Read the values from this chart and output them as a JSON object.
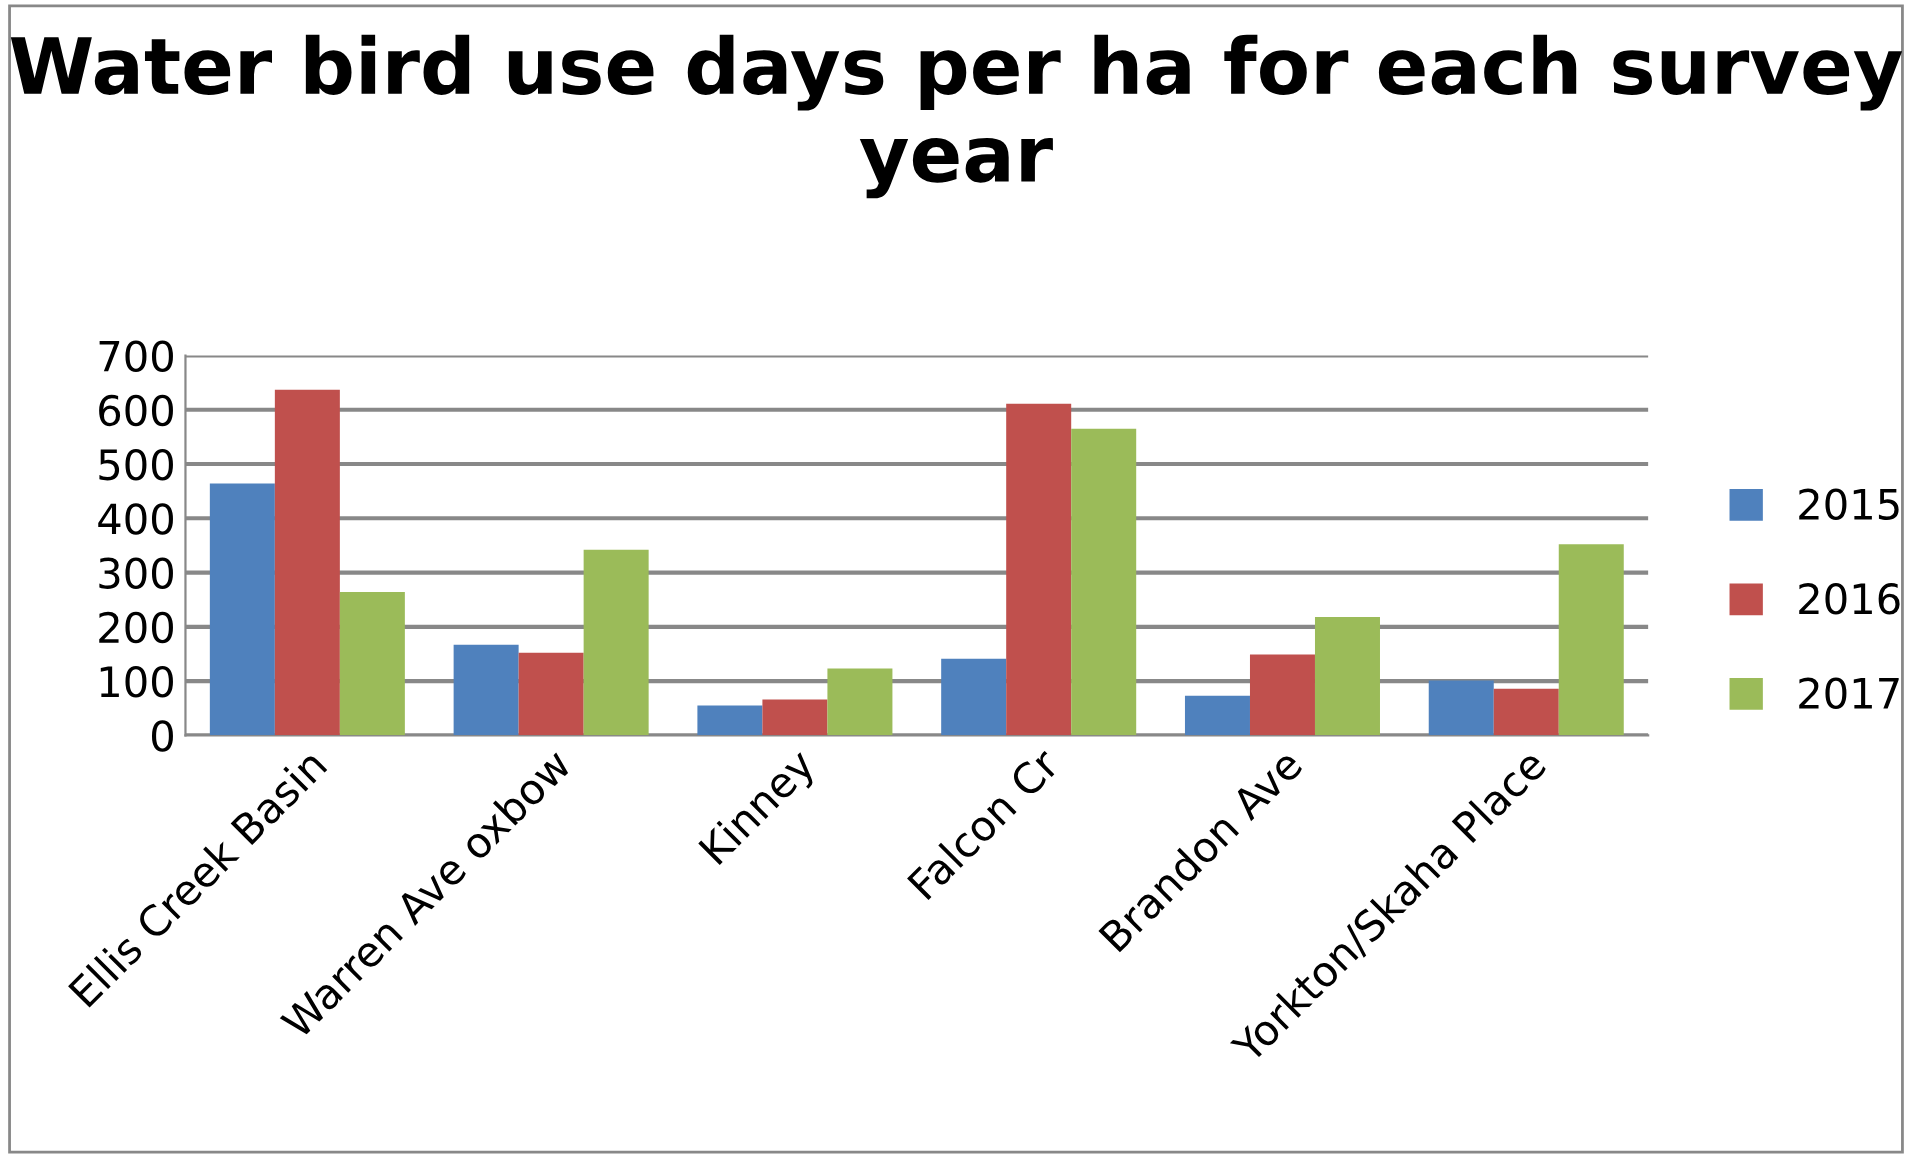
{
  "chart_data": {
    "type": "bar",
    "title": "Water bird use days per ha for each survey year",
    "categories": [
      "Ellis Creek Basin",
      "Warren Ave oxbow",
      "Kinney",
      "Falcon Cr",
      "Brandon Ave",
      "Yorkton/Skaha Place"
    ],
    "series": [
      {
        "name": "2015",
        "color": "#4f81bd",
        "values": [
          464,
          167,
          55,
          141,
          73,
          101
        ]
      },
      {
        "name": "2016",
        "color": "#c0504d",
        "values": [
          637,
          152,
          66,
          611,
          149,
          86
        ]
      },
      {
        "name": "2017",
        "color": "#9bbb59",
        "values": [
          264,
          342,
          123,
          565,
          218,
          352
        ]
      }
    ],
    "ylim": [
      0,
      700
    ],
    "yticks": [
      0,
      100,
      200,
      300,
      400,
      500,
      600,
      700
    ],
    "grid": "y",
    "legend": "right"
  }
}
